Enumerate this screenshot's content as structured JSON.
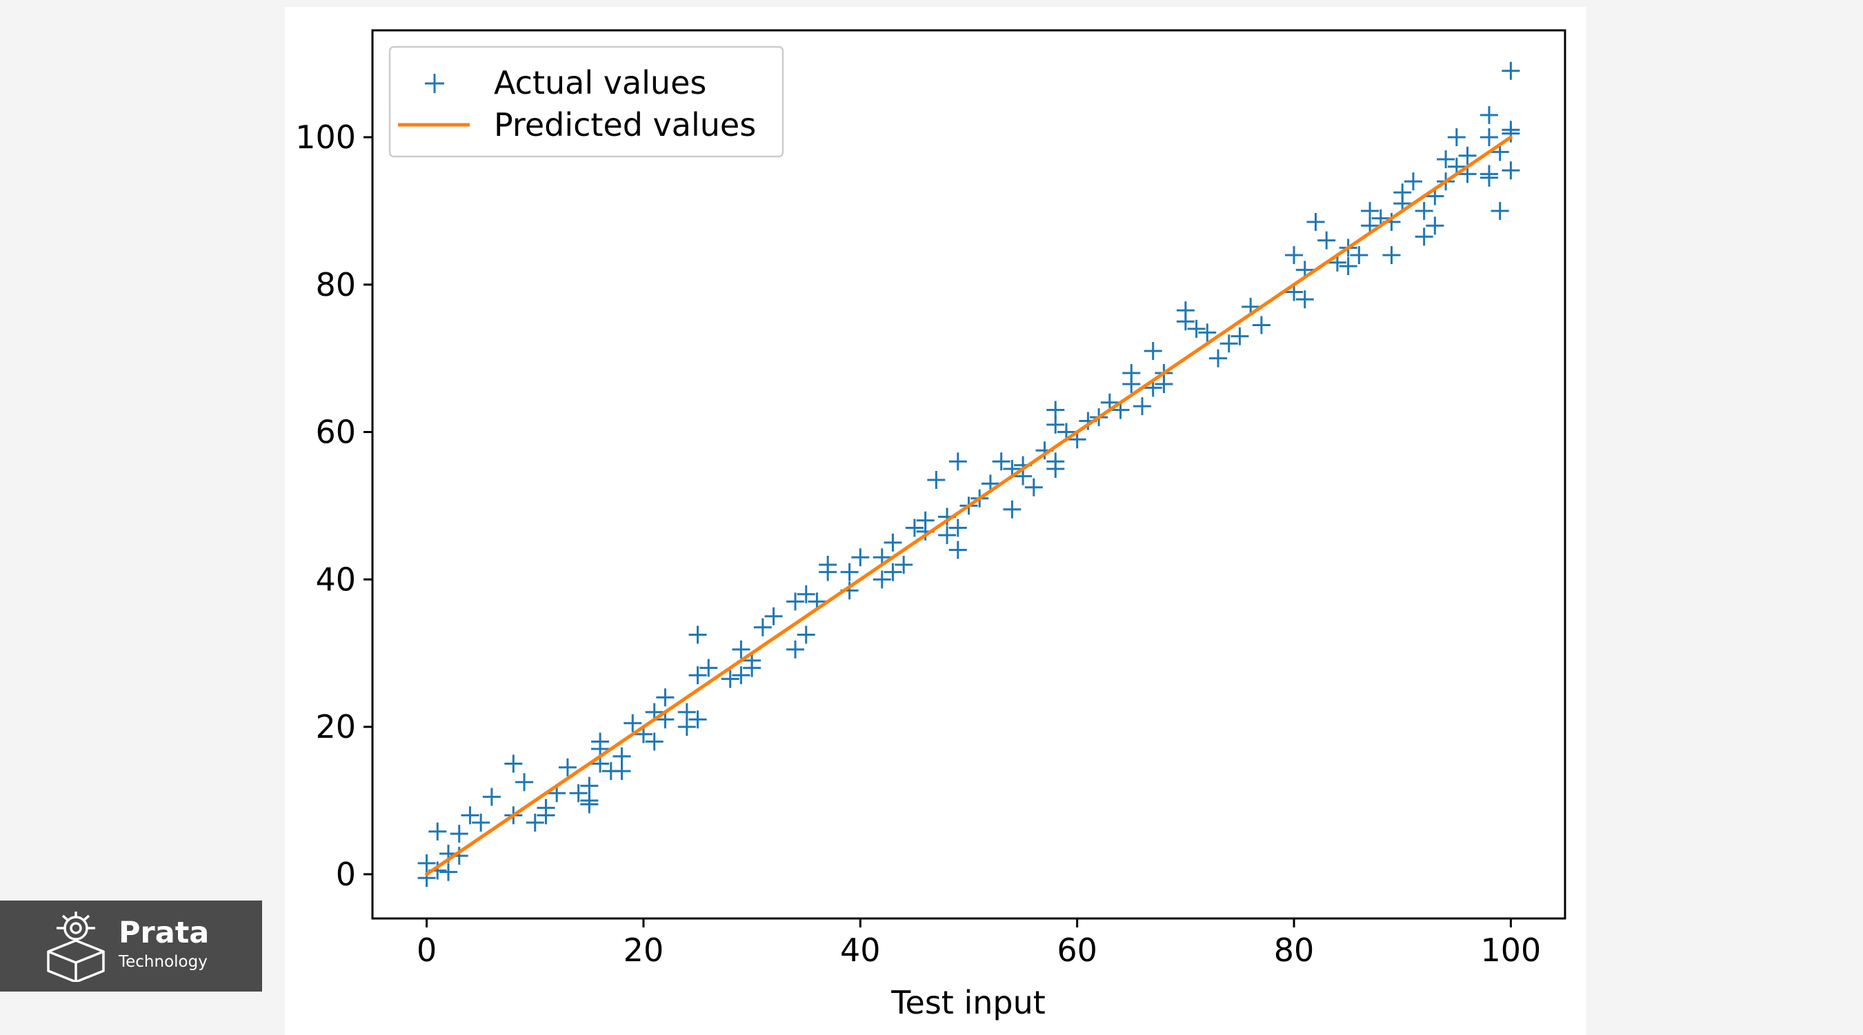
{
  "logo": {
    "name": "Prata",
    "subtitle": "Technology"
  },
  "chart_data": {
    "type": "scatter",
    "xlabel": "Test input",
    "ylabel": "",
    "xlim": [
      -5,
      105
    ],
    "ylim": [
      -6,
      114.5
    ],
    "x_ticks": [
      0,
      20,
      40,
      60,
      80,
      100
    ],
    "y_ticks": [
      0,
      20,
      40,
      60,
      80,
      100
    ],
    "grid": false,
    "legend_position": "top-left",
    "series": [
      {
        "name": "Actual values",
        "kind": "scatter",
        "marker": "+",
        "color": "#1f77b4",
        "points": [
          [
            0,
            1.5
          ],
          [
            0,
            -0.5
          ],
          [
            1,
            5.8
          ],
          [
            1,
            0.5
          ],
          [
            2,
            0.3
          ],
          [
            2,
            2.8
          ],
          [
            3,
            5.5
          ],
          [
            3,
            2.5
          ],
          [
            4,
            8
          ],
          [
            5,
            7
          ],
          [
            6,
            10.5
          ],
          [
            8,
            15
          ],
          [
            8,
            8
          ],
          [
            9,
            12.5
          ],
          [
            10,
            7
          ],
          [
            11,
            8
          ],
          [
            11,
            9
          ],
          [
            12,
            11
          ],
          [
            13,
            14.5
          ],
          [
            14,
            11
          ],
          [
            15,
            10
          ],
          [
            15,
            9.5
          ],
          [
            15,
            12
          ],
          [
            16,
            17
          ],
          [
            16,
            18
          ],
          [
            16,
            15
          ],
          [
            17,
            14
          ],
          [
            18,
            16
          ],
          [
            18,
            14
          ],
          [
            19,
            20.5
          ],
          [
            20,
            19
          ],
          [
            21,
            18
          ],
          [
            21,
            22
          ],
          [
            22,
            24
          ],
          [
            22,
            21
          ],
          [
            24,
            20
          ],
          [
            24,
            22
          ],
          [
            25,
            21
          ],
          [
            25,
            32.5
          ],
          [
            25,
            27
          ],
          [
            26,
            28
          ],
          [
            28,
            26.5
          ],
          [
            29,
            30.5
          ],
          [
            29,
            27
          ],
          [
            30,
            29
          ],
          [
            30,
            28
          ],
          [
            31,
            33.5
          ],
          [
            32,
            35
          ],
          [
            34,
            37
          ],
          [
            34,
            30.5
          ],
          [
            35,
            32.5
          ],
          [
            35,
            38
          ],
          [
            36,
            37
          ],
          [
            37,
            42
          ],
          [
            37,
            41
          ],
          [
            39,
            38.5
          ],
          [
            39,
            41
          ],
          [
            40,
            43
          ],
          [
            42,
            40
          ],
          [
            42,
            43
          ],
          [
            43,
            45
          ],
          [
            43,
            41
          ],
          [
            44,
            42
          ],
          [
            45,
            47
          ],
          [
            46,
            46.5
          ],
          [
            46,
            48
          ],
          [
            47,
            53.5
          ],
          [
            48,
            48.5
          ],
          [
            48,
            46
          ],
          [
            49,
            47
          ],
          [
            49,
            44
          ],
          [
            49,
            56
          ],
          [
            50,
            50
          ],
          [
            51,
            51
          ],
          [
            52,
            53
          ],
          [
            53,
            56
          ],
          [
            54,
            55
          ],
          [
            54,
            49.5
          ],
          [
            55,
            55.5
          ],
          [
            55,
            54
          ],
          [
            56,
            52.5
          ],
          [
            57,
            57.5
          ],
          [
            58,
            63
          ],
          [
            58,
            61
          ],
          [
            58,
            56
          ],
          [
            58,
            55
          ],
          [
            59,
            60
          ],
          [
            60,
            59
          ],
          [
            61,
            61.5
          ],
          [
            62,
            62
          ],
          [
            63,
            64
          ],
          [
            64,
            63
          ],
          [
            65,
            68
          ],
          [
            65,
            66.5
          ],
          [
            66,
            63.5
          ],
          [
            67,
            71
          ],
          [
            67,
            66
          ],
          [
            68,
            68
          ],
          [
            68,
            66.5
          ],
          [
            70,
            76.5
          ],
          [
            70,
            75
          ],
          [
            71,
            74
          ],
          [
            72,
            73.5
          ],
          [
            73,
            70
          ],
          [
            74,
            72
          ],
          [
            75,
            73
          ],
          [
            76,
            77
          ],
          [
            77,
            74.5
          ],
          [
            80,
            84
          ],
          [
            80,
            79
          ],
          [
            81,
            78
          ],
          [
            81,
            82
          ],
          [
            82,
            88.5
          ],
          [
            83,
            86
          ],
          [
            84,
            83
          ],
          [
            85,
            82.5
          ],
          [
            85,
            85
          ],
          [
            86,
            84
          ],
          [
            87,
            90
          ],
          [
            87,
            88
          ],
          [
            88,
            89
          ],
          [
            89,
            88.5
          ],
          [
            89,
            84
          ],
          [
            90,
            91
          ],
          [
            90,
            92.5
          ],
          [
            91,
            94
          ],
          [
            92,
            90
          ],
          [
            92,
            86.5
          ],
          [
            93,
            88
          ],
          [
            93,
            92
          ],
          [
            94,
            94
          ],
          [
            94,
            97
          ],
          [
            95,
            96
          ],
          [
            95,
            100
          ],
          [
            96,
            97.5
          ],
          [
            96,
            95
          ],
          [
            98,
            103
          ],
          [
            98,
            95
          ],
          [
            98,
            94.5
          ],
          [
            98,
            100
          ],
          [
            99,
            90
          ],
          [
            99,
            98
          ],
          [
            100,
            101
          ],
          [
            100,
            100.5
          ],
          [
            100,
            109
          ],
          [
            100,
            95.5
          ]
        ]
      },
      {
        "name": "Predicted values",
        "kind": "line",
        "color": "#ff7f0e",
        "x": [
          0,
          100
        ],
        "y": [
          0,
          100
        ]
      }
    ]
  }
}
